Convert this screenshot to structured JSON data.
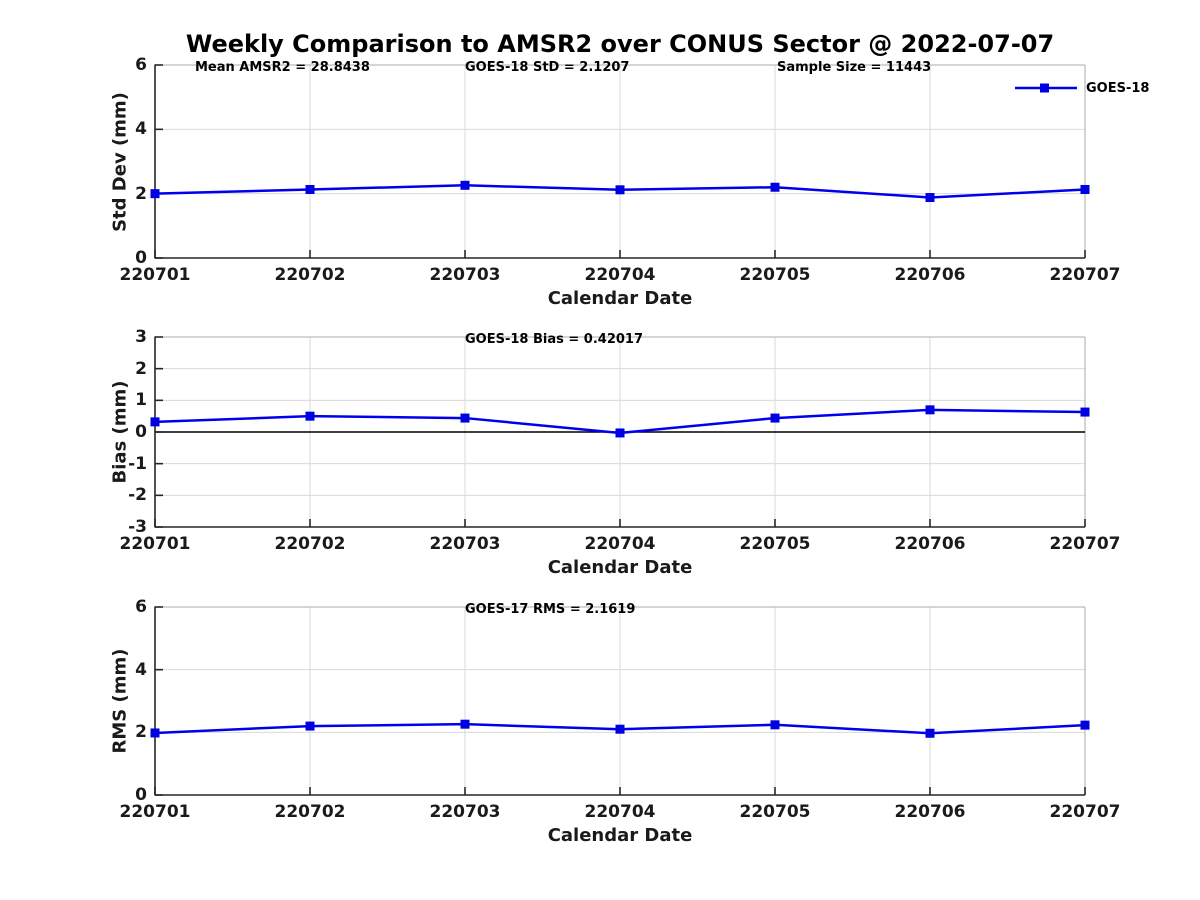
{
  "figure": {
    "title": "Weekly Comparison to AMSR2 over CONUS Sector @ 2022-07-07",
    "background": "#ffffff"
  },
  "colors": {
    "line": "#0000EE",
    "marker": "#0000E0",
    "grid": "#d9d9d9",
    "spine_light": "#ababab",
    "axis_dark": "#262626",
    "zero_line": "#000000",
    "text": "#1a1a1a"
  },
  "legend": {
    "label": "GOES-18",
    "position": "top-right",
    "box": false
  },
  "chart_data": [
    {
      "type": "line",
      "title": "Weekly Comparison to AMSR2 over CONUS Sector @ 2022-07-07",
      "annotations": [
        "Mean AMSR2 = 28.8438",
        "GOES-18 StD = 2.1207",
        "Sample Size = 11443"
      ],
      "categories": [
        "220701",
        "220702",
        "220703",
        "220704",
        "220705",
        "220706",
        "220707"
      ],
      "series": [
        {
          "name": "GOES-18",
          "color": "#0000EE",
          "marker": "square",
          "values": [
            2.0,
            2.13,
            2.26,
            2.12,
            2.2,
            1.88,
            2.13
          ]
        }
      ],
      "xlabel": "Calendar Date",
      "ylabel": "Std Dev (mm)",
      "ylim": [
        0,
        6
      ],
      "yticks": [
        0,
        2,
        4,
        6
      ],
      "grid": true,
      "zero_line": false,
      "legend_visible": true
    },
    {
      "type": "line",
      "annotations": [
        "GOES-18 Bias  = 0.42017"
      ],
      "categories": [
        "220701",
        "220702",
        "220703",
        "220704",
        "220705",
        "220706",
        "220707"
      ],
      "series": [
        {
          "name": "GOES-18",
          "color": "#0000EE",
          "marker": "square",
          "values": [
            0.32,
            0.5,
            0.44,
            -0.03,
            0.44,
            0.7,
            0.63
          ]
        }
      ],
      "xlabel": "Calendar Date",
      "ylabel": "Bias (mm)",
      "ylim": [
        -3,
        3
      ],
      "yticks": [
        -3,
        -2,
        -1,
        0,
        1,
        2,
        3
      ],
      "grid": true,
      "zero_line": true,
      "legend_visible": false
    },
    {
      "type": "line",
      "annotations": [
        "GOES-17 RMS = 2.1619"
      ],
      "categories": [
        "220701",
        "220702",
        "220703",
        "220704",
        "220705",
        "220706",
        "220707"
      ],
      "series": [
        {
          "name": "GOES-18",
          "color": "#0000EE",
          "marker": "square",
          "values": [
            1.98,
            2.2,
            2.26,
            2.1,
            2.24,
            1.97,
            2.23
          ]
        }
      ],
      "xlabel": "Calendar Date",
      "ylabel": "RMS (mm)",
      "ylim": [
        0,
        6
      ],
      "yticks": [
        0,
        2,
        4,
        6
      ],
      "grid": true,
      "zero_line": false,
      "legend_visible": false
    }
  ]
}
